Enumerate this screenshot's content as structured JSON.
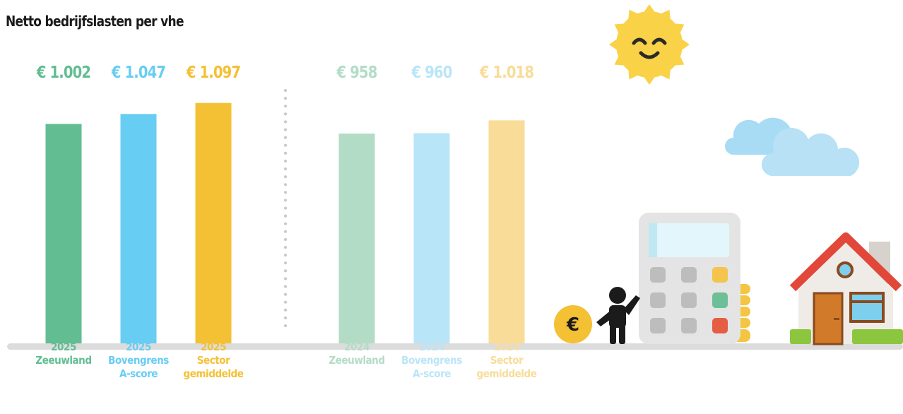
{
  "chart_data": {
    "type": "bar",
    "title": "Netto bedrijfslasten per vhe",
    "categories": [
      "Zeeuwland",
      "Bovengrens A-score",
      "Sector gemiddelde"
    ],
    "series": [
      {
        "name": "2025",
        "colors": [
          "#62bd92",
          "#68cdf3",
          "#f4c034"
        ],
        "values": [
          1002,
          1047,
          1097
        ],
        "value_labels": [
          "€ 1.002",
          "€ 1.047",
          "€ 1.097"
        ]
      },
      {
        "name": "2024",
        "colors": [
          "#b3dcc6",
          "#b9e5f8",
          "#f8dc98"
        ],
        "values": [
          958,
          960,
          1018
        ],
        "value_labels": [
          "€ 958",
          "€ 960",
          "€ 1.018"
        ]
      }
    ]
  },
  "decor": {
    "coin_symbol": "€"
  }
}
